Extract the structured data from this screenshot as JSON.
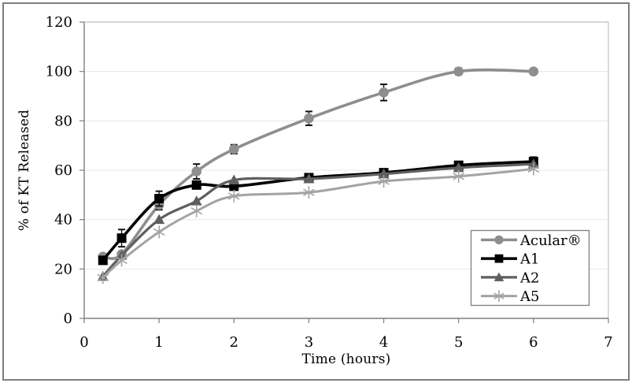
{
  "figure": {
    "background": "#ffffff",
    "border_color": "#7f7f7f"
  },
  "chart_data": {
    "type": "line",
    "title": "",
    "xlabel": "Time (hours)",
    "ylabel": "% of KT Released",
    "xlim": [
      0,
      7
    ],
    "ylim": [
      0,
      120
    ],
    "x_ticks": [
      0,
      1,
      2,
      3,
      4,
      5,
      6,
      7
    ],
    "y_ticks": [
      0,
      20,
      40,
      60,
      80,
      100,
      120
    ],
    "grid": "horizontal",
    "legend_position": "right-middle",
    "x": [
      0.25,
      0.5,
      1,
      1.5,
      2,
      3,
      4,
      5,
      6
    ],
    "series": [
      {
        "name": "Acular®",
        "marker": "circle",
        "color": "#8e8e8e",
        "line_width": 3.6,
        "values": [
          25,
          26,
          46,
          59.5,
          68.5,
          81,
          91.5,
          100,
          100
        ],
        "errors": [
          0,
          0,
          2,
          3,
          1.8,
          2.8,
          3.3,
          1.3,
          0
        ]
      },
      {
        "name": "A1",
        "marker": "square",
        "color": "#000000",
        "line_width": 3.6,
        "values": [
          23.5,
          32.5,
          48.5,
          54,
          53.5,
          57,
          59,
          62,
          63.5
        ],
        "errors": [
          0,
          3.5,
          3,
          1.5,
          0,
          0,
          0,
          1.5,
          1.8
        ]
      },
      {
        "name": "A2",
        "marker": "triangle",
        "color": "#5f5f5f",
        "line_width": 3.2,
        "values": [
          17,
          25.5,
          40,
          47.5,
          56,
          56.5,
          58.5,
          61,
          62.5
        ],
        "errors": [
          0,
          0,
          0,
          0,
          0,
          0,
          0,
          0,
          0
        ]
      },
      {
        "name": "A5",
        "marker": "asterisk",
        "color": "#a3a3a3",
        "line_width": 3,
        "values": [
          16.5,
          23.5,
          35,
          43.5,
          49.5,
          51,
          55.5,
          57.5,
          60.5
        ],
        "errors": [
          0,
          0,
          0,
          0,
          0,
          0,
          0,
          0,
          0
        ]
      }
    ],
    "colors": {
      "gridline": "#e8e8e8",
      "plot_border": "#bdbdbd",
      "axis": "#7f7f7f",
      "tick": "#7f7f7f",
      "error_bar": "#111111",
      "legend_border": "#7f7f7f",
      "text": "#000000"
    }
  }
}
